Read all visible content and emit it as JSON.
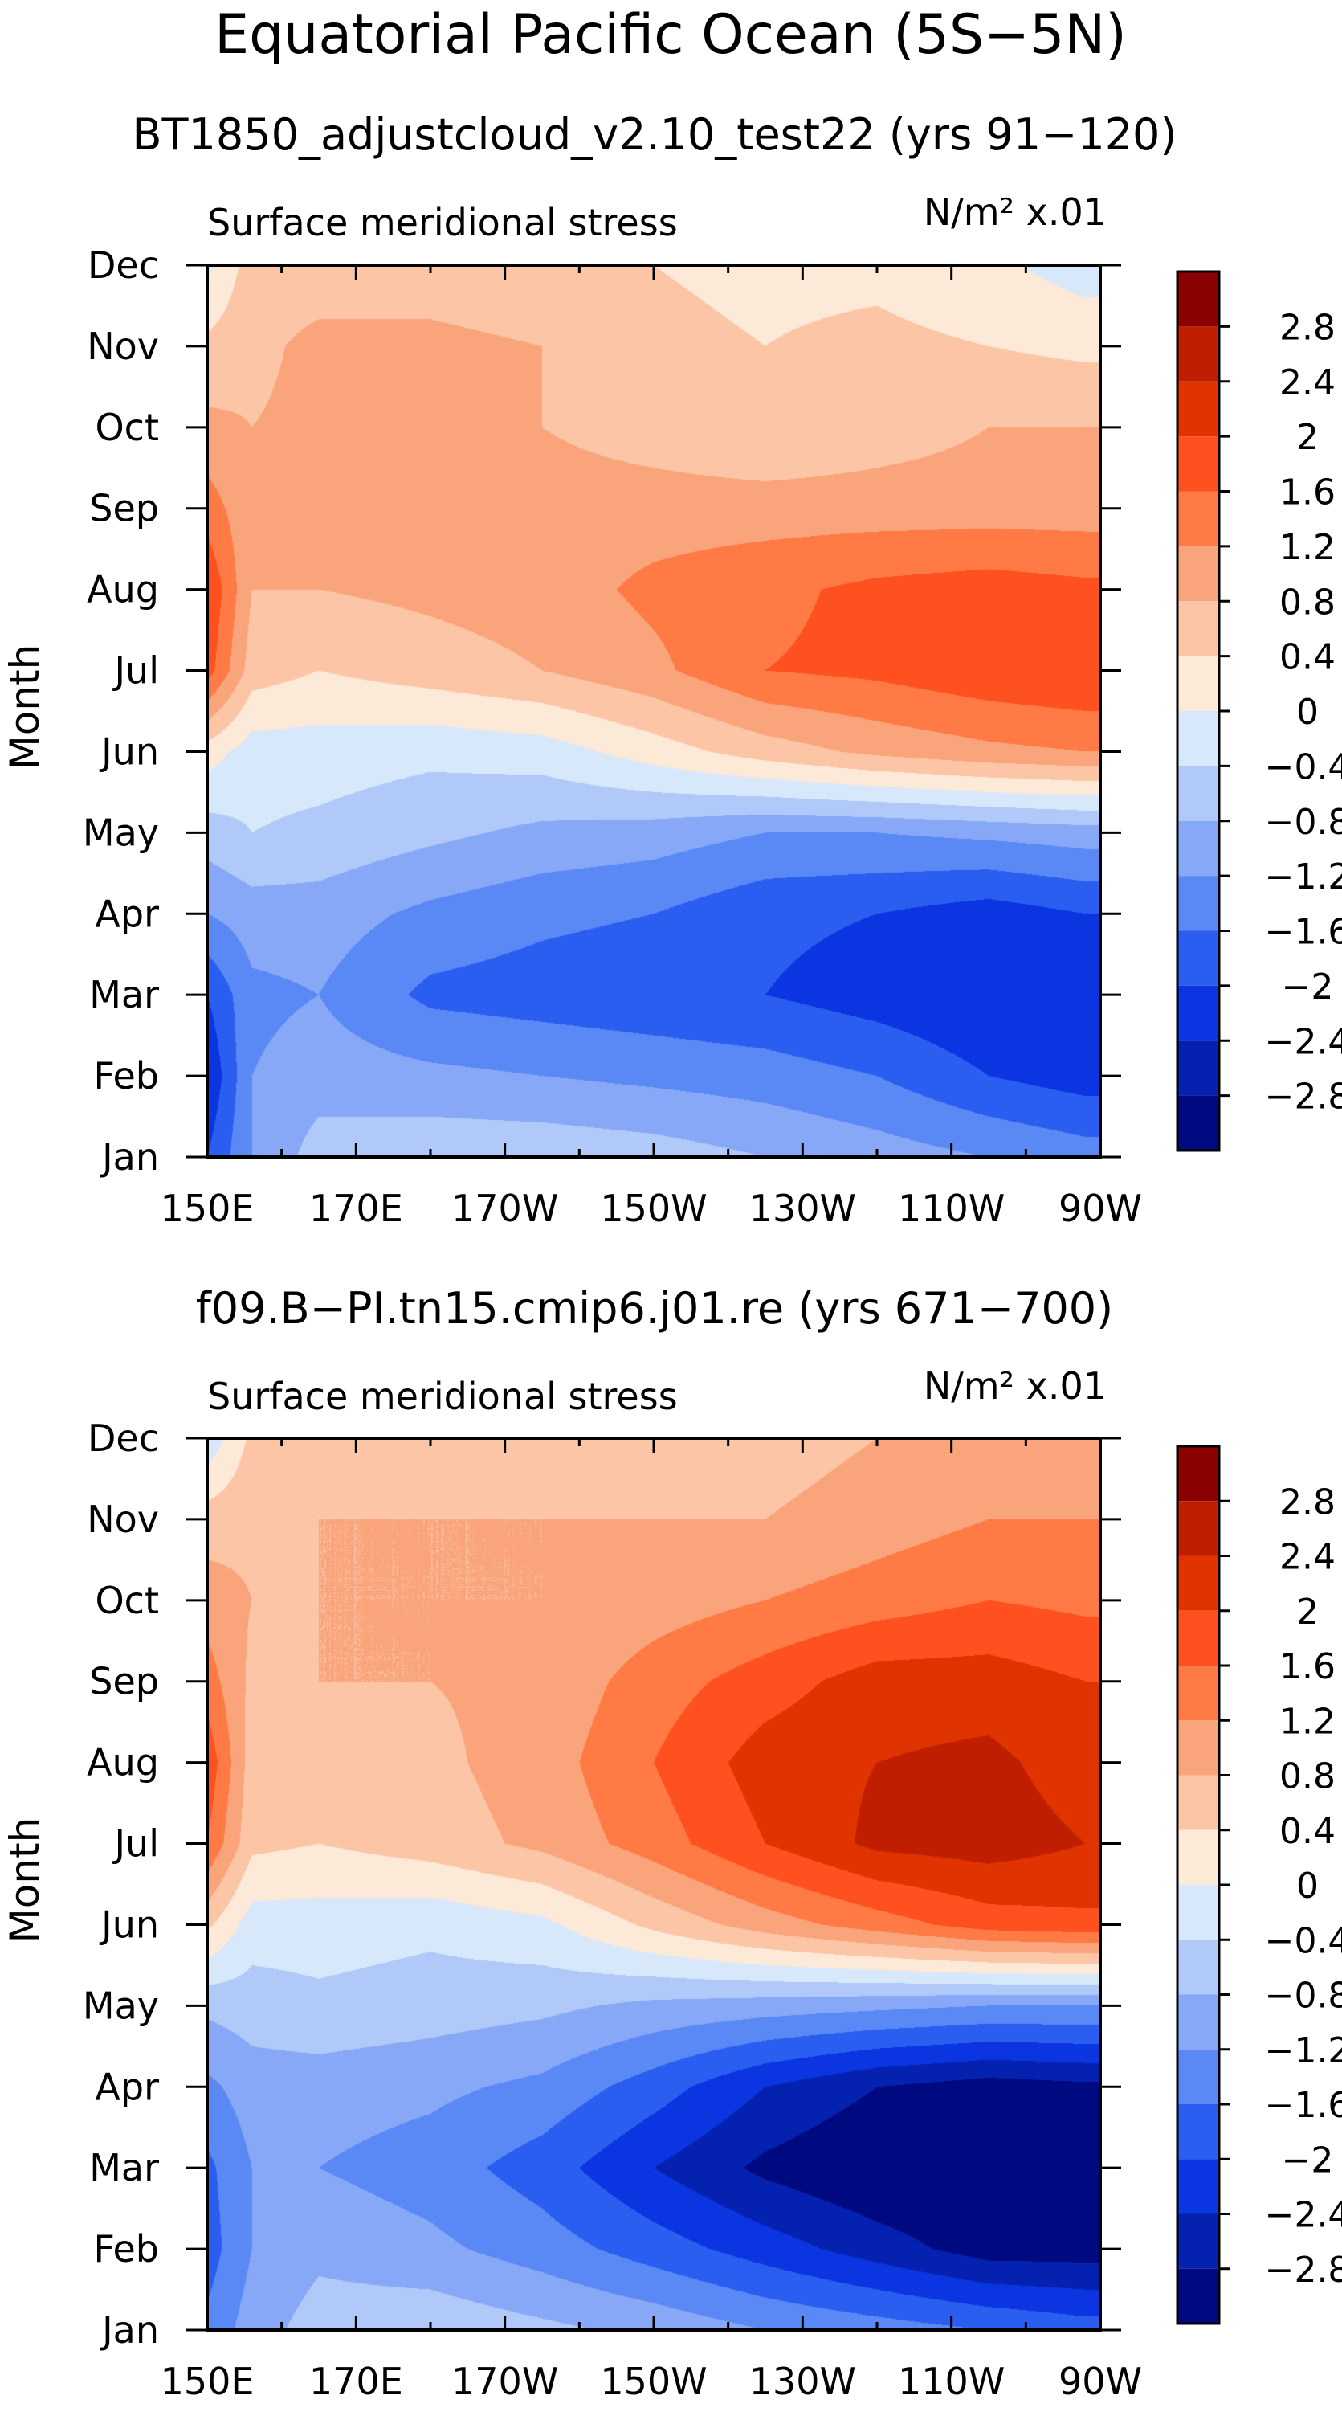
{
  "page_title": "Equatorial Pacific Ocean (5S−5N)",
  "chart_data": [
    {
      "type": "heatmap",
      "title": "BT1850_adjustcloud_v2.10_test22 (yrs 91−120)",
      "subtitle_left": "Surface meridional stress",
      "subtitle_right": "N/m² x.01",
      "ylabel": "Month",
      "xlabel": "",
      "x_tick_labels": [
        "150E",
        "170E",
        "170W",
        "150W",
        "130W",
        "110W",
        "90W"
      ],
      "x_tick_values": [
        150,
        170,
        190,
        210,
        230,
        250,
        270
      ],
      "xlim": [
        150,
        270
      ],
      "y_tick_labels": [
        "Jan",
        "Feb",
        "Mar",
        "Apr",
        "May",
        "Jun",
        "Jul",
        "Aug",
        "Sep",
        "Oct",
        "Nov",
        "Dec"
      ],
      "ylim": [
        1,
        12
      ],
      "contour_levels": [
        -2.8,
        -2.4,
        -2,
        -1.6,
        -1.2,
        -0.8,
        -0.4,
        0,
        0.4,
        0.8,
        1.2,
        1.6,
        2,
        2.4,
        2.8
      ],
      "colorbar_labels": [
        "2.8",
        "2.4",
        "2",
        "1.6",
        "1.2",
        "0.8",
        "0.4",
        "0",
        "−0.4",
        "−0.8",
        "−1.2",
        "−1.6",
        "−2",
        "−2.4",
        "−2.8"
      ],
      "colorbar_colors": [
        "#8b0000",
        "#c01e00",
        "#e03300",
        "#ff5020",
        "#ff7a45",
        "#f9a47a",
        "#fcc5a6",
        "#fde9d8",
        "#d7e8fb",
        "#b0c9f8",
        "#86a8f6",
        "#5a88f4",
        "#2a5ef0",
        "#0b35e0",
        "#0521b0",
        "#000a80"
      ],
      "x": [
        150,
        156,
        165,
        180,
        195,
        210,
        225,
        240,
        255,
        268
      ],
      "y": [
        1,
        2,
        3,
        4,
        5,
        6,
        7,
        8,
        9,
        10,
        11,
        12
      ],
      "values": [
        [
          -2.0,
          -1.2,
          -0.6,
          -0.5,
          -0.5,
          -0.6,
          -0.8,
          -1.0,
          -1.2,
          -1.4
        ],
        [
          -2.4,
          -1.2,
          -1.0,
          -1.1,
          -1.2,
          -1.3,
          -1.4,
          -1.6,
          -2.0,
          -2.2
        ],
        [
          -2.0,
          -1.3,
          -1.2,
          -1.7,
          -1.8,
          -1.9,
          -2.0,
          -2.2,
          -2.4,
          -2.2
        ],
        [
          -1.2,
          -1.0,
          -1.0,
          -1.3,
          -1.5,
          -1.6,
          -1.9,
          -2.0,
          -2.2,
          -2.0
        ],
        [
          -0.6,
          -0.4,
          -0.5,
          -0.7,
          -0.9,
          -1.0,
          -1.2,
          -1.2,
          -1.1,
          -1.0
        ],
        [
          0.2,
          -0.2,
          -0.2,
          -0.3,
          -0.2,
          0.2,
          0.6,
          0.9,
          1.1,
          1.2
        ],
        [
          1.8,
          0.6,
          0.4,
          0.6,
          0.8,
          1.1,
          1.6,
          1.7,
          1.9,
          2.0
        ],
        [
          2.0,
          0.8,
          0.8,
          0.9,
          1.0,
          1.3,
          1.5,
          1.7,
          1.8,
          1.7
        ],
        [
          1.4,
          0.9,
          0.9,
          1.0,
          1.0,
          1.0,
          1.0,
          1.0,
          1.0,
          1.0
        ],
        [
          0.9,
          0.8,
          0.9,
          1.0,
          0.8,
          0.6,
          0.4,
          0.6,
          0.8,
          0.8
        ],
        [
          0.5,
          0.7,
          0.9,
          0.9,
          0.8,
          0.5,
          0.4,
          0.5,
          0.4,
          0.3
        ],
        [
          -0.1,
          0.6,
          0.6,
          0.6,
          0.5,
          0.4,
          0.3,
          0.3,
          0.1,
          -0.2
        ]
      ]
    },
    {
      "type": "heatmap",
      "title": "f09.B−PI.tn15.cmip6.j01.re (yrs 671−700)",
      "subtitle_left": "Surface meridional stress",
      "subtitle_right": "N/m² x.01",
      "ylabel": "Month",
      "xlabel": "",
      "x_tick_labels": [
        "150E",
        "170E",
        "170W",
        "150W",
        "130W",
        "110W",
        "90W"
      ],
      "x_tick_values": [
        150,
        170,
        190,
        210,
        230,
        250,
        270
      ],
      "xlim": [
        150,
        270
      ],
      "y_tick_labels": [
        "Jan",
        "Feb",
        "Mar",
        "Apr",
        "May",
        "Jun",
        "Jul",
        "Aug",
        "Sep",
        "Oct",
        "Nov",
        "Dec"
      ],
      "ylim": [
        1,
        12
      ],
      "contour_levels": [
        -2.8,
        -2.4,
        -2,
        -1.6,
        -1.2,
        -0.8,
        -0.4,
        0,
        0.4,
        0.8,
        1.2,
        1.6,
        2,
        2.4,
        2.8
      ],
      "colorbar_labels": [
        "2.8",
        "2.4",
        "2",
        "1.6",
        "1.2",
        "0.8",
        "0.4",
        "0",
        "−0.4",
        "−0.8",
        "−1.2",
        "−1.6",
        "−2",
        "−2.4",
        "−2.8"
      ],
      "colorbar_colors": [
        "#8b0000",
        "#c01e00",
        "#e03300",
        "#ff5020",
        "#ff7a45",
        "#f9a47a",
        "#fcc5a6",
        "#fde9d8",
        "#d7e8fb",
        "#b0c9f8",
        "#86a8f6",
        "#5a88f4",
        "#2a5ef0",
        "#0b35e0",
        "#0521b0",
        "#000a80"
      ],
      "x": [
        150,
        156,
        165,
        180,
        195,
        210,
        225,
        240,
        255,
        268
      ],
      "y": [
        1,
        2,
        3,
        4,
        5,
        6,
        7,
        8,
        9,
        10,
        11,
        12
      ],
      "values": [
        [
          -1.5,
          -1.0,
          -0.6,
          -0.5,
          -0.7,
          -0.9,
          -1.2,
          -1.4,
          -1.6,
          -1.8
        ],
        [
          -1.8,
          -1.2,
          -0.9,
          -1.1,
          -1.4,
          -1.8,
          -2.2,
          -2.6,
          -3.0,
          -3.0
        ],
        [
          -1.7,
          -1.2,
          -1.2,
          -1.4,
          -1.8,
          -2.4,
          -2.9,
          -3.2,
          -3.3,
          -3.2
        ],
        [
          -1.3,
          -1.0,
          -1.0,
          -1.1,
          -1.3,
          -1.8,
          -2.4,
          -2.8,
          -3.0,
          -2.9
        ],
        [
          -0.7,
          -0.6,
          -0.5,
          -0.6,
          -0.7,
          -0.9,
          -1.0,
          -1.1,
          -1.2,
          -1.2
        ],
        [
          0.5,
          -0.2,
          -0.2,
          -0.3,
          -0.1,
          0.5,
          1.0,
          1.4,
          1.8,
          1.9
        ],
        [
          1.6,
          0.5,
          0.4,
          0.6,
          0.9,
          1.4,
          2.0,
          2.5,
          2.6,
          2.4
        ],
        [
          1.9,
          0.6,
          0.5,
          0.7,
          1.0,
          1.6,
          2.2,
          2.4,
          2.5,
          2.2
        ],
        [
          1.4,
          0.7,
          0.8,
          0.8,
          0.9,
          1.4,
          1.8,
          2.2,
          2.2,
          2.0
        ],
        [
          1.0,
          0.8,
          0.8,
          0.8,
          0.8,
          1.0,
          1.2,
          1.4,
          1.6,
          1.5
        ],
        [
          0.6,
          0.7,
          0.8,
          0.8,
          0.8,
          0.8,
          0.8,
          1.0,
          1.2,
          1.2
        ],
        [
          -0.3,
          0.5,
          0.6,
          0.6,
          0.6,
          0.6,
          0.6,
          0.8,
          0.9,
          0.9
        ]
      ]
    }
  ]
}
